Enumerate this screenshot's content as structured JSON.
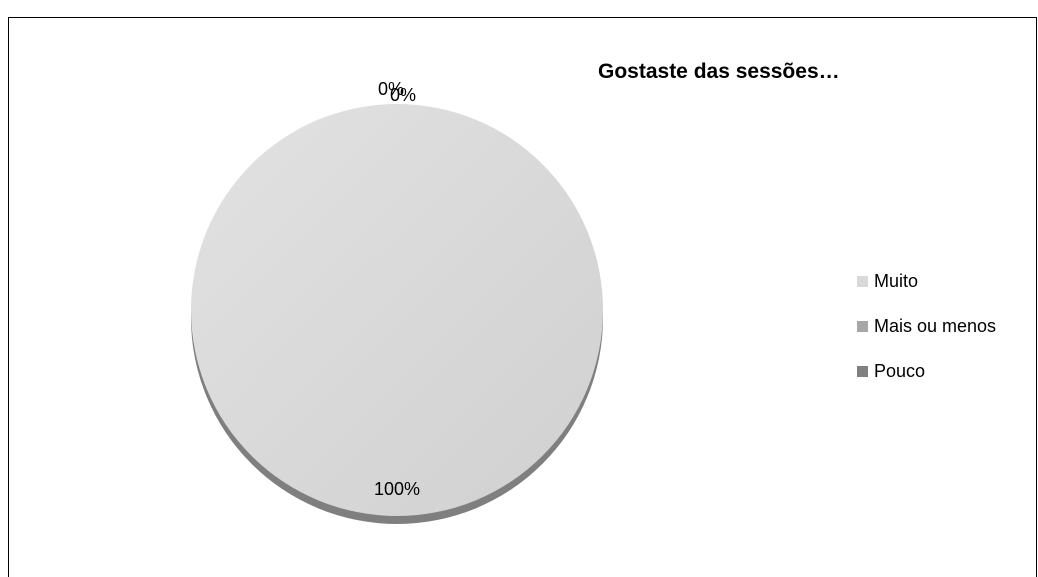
{
  "chart_data": {
    "type": "pie",
    "title": "Gostaste das sessões…",
    "categories": [
      "Muito",
      "Mais ou menos",
      "Pouco"
    ],
    "values": [
      100,
      0,
      0
    ],
    "data_labels": [
      "100%",
      "0%",
      "0%"
    ],
    "colors": [
      "#d9d9d9",
      "#a6a6a6",
      "#808080"
    ],
    "legend": "right",
    "style": "3d-pie"
  }
}
